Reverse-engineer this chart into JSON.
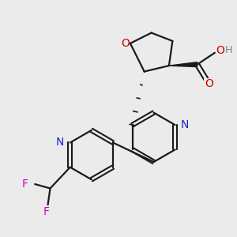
{
  "background_color": "#ebebeb",
  "bond_color": "#1a1a1a",
  "N_color": "#2020cc",
  "O_color": "#cc0000",
  "F_color": "#cc00cc",
  "H_color": "#5a9090",
  "figsize": [
    3.0,
    3.0
  ],
  "dpi": 100,
  "xlim": [
    0,
    10
  ],
  "ylim": [
    0,
    10
  ]
}
